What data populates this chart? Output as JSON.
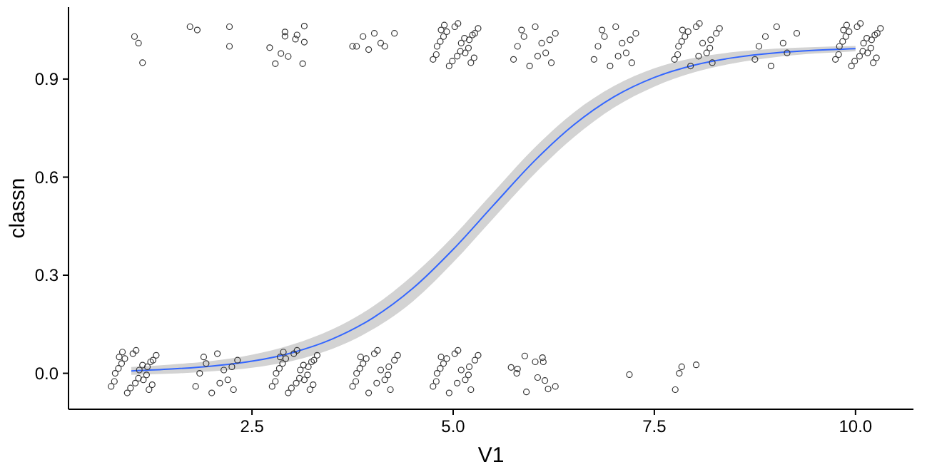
{
  "chart_data": {
    "type": "scatter",
    "xlabel": "V1",
    "ylabel": "classn",
    "xlim": [
      0.22,
      10.72
    ],
    "ylim": [
      -0.11,
      1.12
    ],
    "xticks": [
      {
        "value": 2.5,
        "label": "2.5"
      },
      {
        "value": 5,
        "label": "5.0"
      },
      {
        "value": 7.5,
        "label": "7.5"
      },
      {
        "value": 10,
        "label": "10.0"
      }
    ],
    "yticks": [
      {
        "value": 0,
        "label": "0.0"
      },
      {
        "value": 0.3,
        "label": "0.3"
      },
      {
        "value": 0.6,
        "label": "0.6"
      },
      {
        "value": 0.9,
        "label": "0.9"
      }
    ],
    "grid": false,
    "marker": "circle",
    "series": [
      {
        "color": "#333333",
        "x": [
          0.75,
          0.88,
          1.02,
          1.15,
          1.27,
          0.8,
          0.95,
          1.1,
          1.22,
          0.85,
          1.05,
          1.2,
          0.79,
          0.92,
          1.06,
          1.19,
          1.31,
          0.84,
          0.99,
          1.14,
          1.26,
          0.89,
          1.09,
          1.24,
          1.8,
          1.93,
          2.07,
          2.2,
          2.32,
          1.85,
          2,
          2.15,
          2.27,
          1.9,
          2.1,
          2.25,
          2.75,
          2.88,
          3.02,
          3.15,
          3.27,
          2.8,
          2.95,
          3.1,
          3.22,
          2.85,
          3.05,
          3.2,
          2.79,
          2.92,
          3.06,
          3.19,
          3.31,
          2.84,
          2.99,
          3.14,
          3.26,
          2.89,
          3.09,
          3.24,
          3.75,
          3.88,
          4.02,
          4.15,
          4.27,
          3.8,
          3.95,
          4.1,
          4.22,
          3.85,
          4.05,
          4.2,
          3.79,
          3.92,
          4.06,
          4.19,
          4.31,
          3.84,
          4.75,
          4.88,
          5.02,
          5.15,
          5.27,
          4.8,
          4.95,
          5.1,
          5.22,
          4.85,
          5.05,
          5.2,
          4.79,
          4.92,
          5.06,
          5.19,
          5.31,
          4.84,
          5.89,
          6.11,
          6.02,
          6.12,
          5.72,
          5.8,
          5.79,
          6.05,
          6.14,
          6.27,
          6.18,
          5.91,
          7.19,
          7.81,
          7.84,
          8.02,
          7.76
        ],
        "values": [
          -0.04,
          0.03,
          0.06,
          -0.02,
          0.04,
          0,
          -0.06,
          0.01,
          -0.05,
          0.05,
          -0.03,
          0.02,
          -0.025,
          0.045,
          0.07,
          -0.005,
          0.055,
          0.015,
          -0.045,
          0.025,
          -0.035,
          0.065,
          -0.015,
          0.035,
          -0.04,
          0.03,
          0.06,
          -0.02,
          0.04,
          0,
          -0.06,
          0.01,
          -0.05,
          0.05,
          -0.03,
          0.02,
          -0.04,
          0.03,
          0.06,
          -0.02,
          0.04,
          0,
          -0.06,
          0.01,
          -0.05,
          0.05,
          -0.03,
          0.02,
          -0.025,
          0.045,
          0.07,
          -0.005,
          0.055,
          0.015,
          -0.045,
          0.025,
          -0.035,
          0.065,
          -0.015,
          0.035,
          -0.04,
          0.03,
          0.06,
          -0.02,
          0.04,
          0,
          -0.06,
          0.01,
          -0.05,
          0.05,
          -0.03,
          0.02,
          -0.025,
          0.045,
          0.07,
          -0.005,
          0.055,
          0.015,
          -0.04,
          0.03,
          0.06,
          -0.02,
          0.04,
          0,
          -0.06,
          0.01,
          -0.05,
          0.05,
          -0.03,
          0.02,
          -0.025,
          0.045,
          0.07,
          -0.005,
          0.055,
          0.015,
          0.053,
          0.048,
          0.035,
          0.035,
          0.018,
          0.013,
          0,
          -0.013,
          -0.022,
          -0.04,
          -0.048,
          -0.057,
          -0.004,
          0,
          0.02,
          0.026,
          -0.05
        ]
      },
      {
        "color": "#333333",
        "x": [
          1.04,
          1.09,
          1.14,
          1.73,
          1.82,
          2.22,
          2.22,
          2.91,
          2.91,
          3.06,
          3.04,
          3.15,
          3.15,
          2.72,
          2.86,
          2.95,
          2.79,
          3.13,
          3.75,
          3.88,
          4.02,
          4.15,
          4.27,
          3.8,
          3.95,
          4.1,
          4.75,
          4.88,
          5.02,
          5.15,
          5.27,
          4.8,
          4.95,
          5.1,
          5.22,
          4.85,
          5.05,
          5.2,
          4.79,
          4.92,
          5.06,
          5.19,
          5.31,
          4.84,
          4.99,
          5.14,
          5.26,
          4.89,
          5.09,
          5.24,
          5.75,
          5.88,
          6.02,
          6.15,
          6.27,
          5.8,
          5.95,
          6.1,
          6.22,
          5.85,
          6.05,
          6.2,
          6.75,
          6.88,
          7.02,
          7.15,
          7.27,
          6.8,
          6.95,
          7.1,
          7.22,
          6.85,
          7.05,
          7.2,
          7.75,
          7.88,
          8.02,
          8.15,
          8.27,
          7.8,
          7.95,
          8.1,
          8.22,
          7.85,
          8.05,
          8.2,
          7.79,
          7.92,
          8.06,
          8.19,
          8.31,
          7.84,
          8.75,
          8.88,
          9.02,
          9.15,
          9.27,
          8.8,
          8.95,
          9.1,
          9.75,
          9.88,
          10.02,
          10.15,
          10.27,
          9.8,
          9.95,
          10.1,
          10.22,
          9.85,
          10.05,
          10.2,
          9.79,
          9.92,
          10.06,
          10.19,
          10.31,
          9.84,
          9.99,
          10.14,
          10.26,
          9.89,
          10.09,
          10.24
        ],
        "values": [
          1.03,
          1.01,
          0.95,
          1.06,
          1.05,
          1.06,
          1.0,
          1.044,
          1.031,
          1.035,
          1.022,
          1.062,
          1.013,
          0.996,
          0.978,
          0.969,
          0.947,
          0.947,
          1.0,
          1.03,
          1.04,
          1.0,
          1.04,
          1.0,
          0.99,
          1.01,
          0.96,
          1.03,
          1.06,
          0.98,
          1.04,
          1,
          0.94,
          1.01,
          0.95,
          1.05,
          0.97,
          1.02,
          0.975,
          1.045,
          1.07,
          0.995,
          1.055,
          1.015,
          0.955,
          1.025,
          0.965,
          1.065,
          0.985,
          1.035,
          0.96,
          1.03,
          1.06,
          0.98,
          1.04,
          1,
          0.94,
          1.01,
          0.95,
          1.05,
          0.97,
          1.02,
          0.96,
          1.03,
          1.06,
          0.98,
          1.04,
          1,
          0.94,
          1.01,
          0.95,
          1.05,
          0.97,
          1.02,
          0.96,
          1.03,
          1.06,
          0.98,
          1.04,
          1,
          0.94,
          1.01,
          0.95,
          1.05,
          0.97,
          1.02,
          0.975,
          1.045,
          1.07,
          0.995,
          1.055,
          1.015,
          0.96,
          1.03,
          1.06,
          0.98,
          1.04,
          1,
          0.94,
          1.01,
          0.96,
          1.03,
          1.06,
          0.98,
          1.04,
          1,
          0.94,
          1.01,
          0.95,
          1.05,
          0.97,
          1.02,
          0.975,
          1.045,
          1.07,
          0.995,
          1.055,
          1.015,
          0.955,
          1.025,
          0.965,
          1.065,
          0.985,
          1.035
        ]
      },
      {
        "type": "line",
        "marker": "none",
        "color": "#3366ff",
        "x": [
          1,
          1.5,
          2,
          2.5,
          3,
          3.5,
          4,
          4.5,
          5,
          5.5,
          6,
          6.5,
          7,
          7.5,
          8,
          8.5,
          9,
          9.5,
          10
        ],
        "values": [
          0.007,
          0.013,
          0.022,
          0.037,
          0.063,
          0.105,
          0.169,
          0.26,
          0.379,
          0.514,
          0.647,
          0.76,
          0.846,
          0.905,
          0.943,
          0.966,
          0.98,
          0.988,
          0.993
        ],
        "lower": [
          -0.005,
          -0.001,
          0.006,
          0.017,
          0.038,
          0.075,
          0.134,
          0.22,
          0.339,
          0.474,
          0.607,
          0.722,
          0.813,
          0.877,
          0.921,
          0.949,
          0.967,
          0.978,
          0.985
        ],
        "upper": [
          0.019,
          0.027,
          0.038,
          0.057,
          0.088,
          0.135,
          0.204,
          0.3,
          0.419,
          0.554,
          0.687,
          0.798,
          0.879,
          0.933,
          0.965,
          0.983,
          0.993,
          0.998,
          1.001
        ]
      }
    ]
  }
}
